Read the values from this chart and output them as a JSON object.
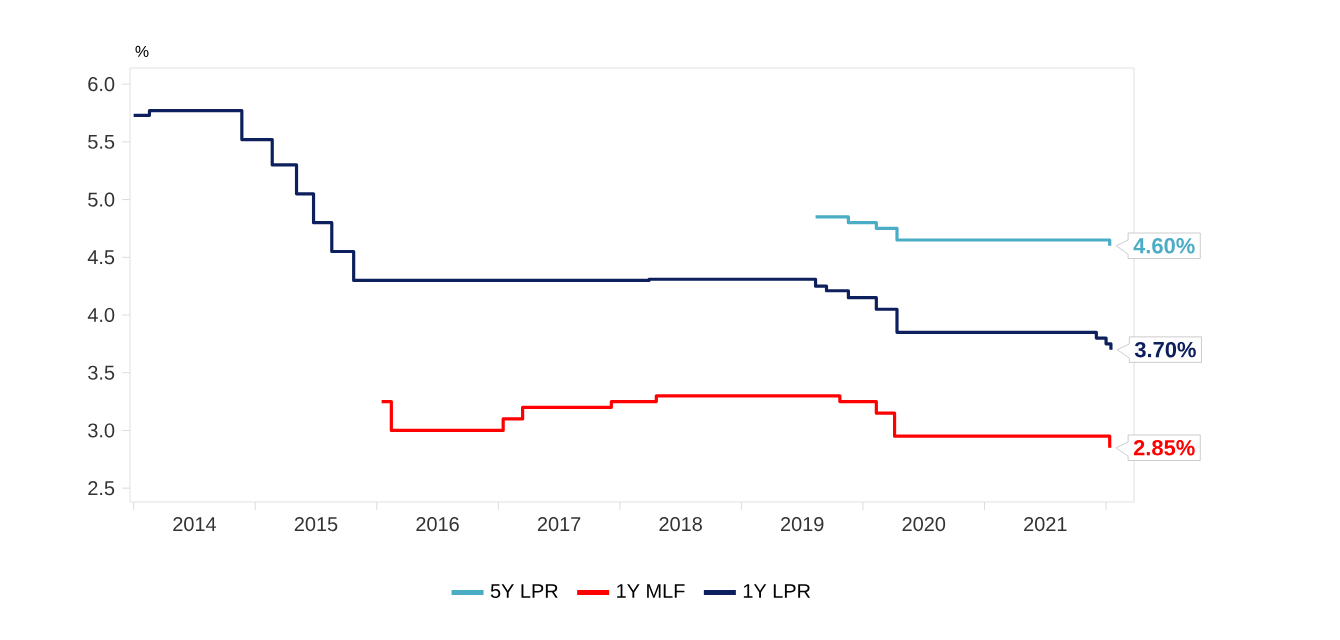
{
  "chart_data": {
    "type": "step",
    "ylabel": "%",
    "xlim": [
      2013.97,
      2022.23
    ],
    "ylim": [
      2.38,
      6.14
    ],
    "yticks": [
      2.5,
      {
        "value": 3,
        "label": "3.0"
      },
      3.5,
      {
        "value": 4,
        "label": "4.0"
      },
      4.5,
      {
        "value": 5,
        "label": "5.0"
      },
      5.5,
      {
        "value": 6,
        "label": "6.0"
      }
    ],
    "xticks": [
      {
        "value": 2014,
        "label": null
      },
      {
        "value": 2015,
        "label": null
      },
      {
        "value": 2016,
        "label": null
      },
      {
        "value": 2017,
        "label": null
      },
      {
        "value": 2018,
        "label": null
      },
      {
        "value": 2019,
        "label": null
      },
      {
        "value": 2020,
        "label": null
      },
      {
        "value": 2021,
        "label": null
      },
      {
        "value": 2022,
        "label": null
      },
      {
        "value": 2014.5,
        "label": "2014"
      },
      {
        "value": 2015.5,
        "label": "2015"
      },
      {
        "value": 2016.5,
        "label": "2016"
      },
      {
        "value": 2017.5,
        "label": "2017"
      },
      {
        "value": 2018.5,
        "label": "2018"
      },
      {
        "value": 2019.5,
        "label": "2019"
      },
      {
        "value": 2020.5,
        "label": "2020"
      },
      {
        "value": 2021.5,
        "label": "2021"
      }
    ],
    "legend": "bottom",
    "grid": false,
    "marker": "none",
    "line_style": "solid",
    "series": [
      {
        "name": "5Y LPR",
        "color": "#4bacc6",
        "x": [
          2019.61,
          2019.88,
          2020.11,
          2020.28,
          2021.98,
          2022.03
        ],
        "values": [
          4.85,
          4.8,
          4.75,
          4.65,
          4.65,
          4.6
        ],
        "value_labels": [
          null,
          null,
          null,
          null,
          null,
          "4.60%"
        ]
      },
      {
        "name": "1Y MLF",
        "color": "#ff0000",
        "x": [
          2016.04,
          2016.12,
          2017.04,
          2017.2,
          2017.93,
          2018.3,
          2019.81,
          2020.11,
          2020.26,
          2021.98,
          2022.03
        ],
        "values": [
          3.25,
          3.0,
          3.1,
          3.2,
          3.25,
          3.3,
          3.25,
          3.15,
          2.95,
          2.95,
          2.85
        ],
        "value_labels": [
          null,
          null,
          null,
          null,
          null,
          null,
          null,
          null,
          null,
          null,
          "2.85%"
        ]
      },
      {
        "name": "1Y LPR",
        "color": "#0d1f5c",
        "x": [
          2014.0,
          2014.13,
          2014.89,
          2015.14,
          2015.34,
          2015.48,
          2015.63,
          2015.81,
          2018.24,
          2019.61,
          2019.7,
          2019.88,
          2020.11,
          2020.28,
          2021.92,
          2022.0,
          2022.04
        ],
        "values": [
          5.73,
          5.77,
          5.52,
          5.3,
          5.05,
          4.8,
          4.55,
          4.3,
          4.31,
          4.25,
          4.21,
          4.15,
          4.05,
          3.85,
          3.8,
          3.75,
          3.7
        ],
        "value_labels": [
          null,
          null,
          null,
          null,
          null,
          null,
          null,
          null,
          null,
          null,
          null,
          null,
          null,
          null,
          null,
          null,
          "3.70%"
        ]
      }
    ]
  }
}
